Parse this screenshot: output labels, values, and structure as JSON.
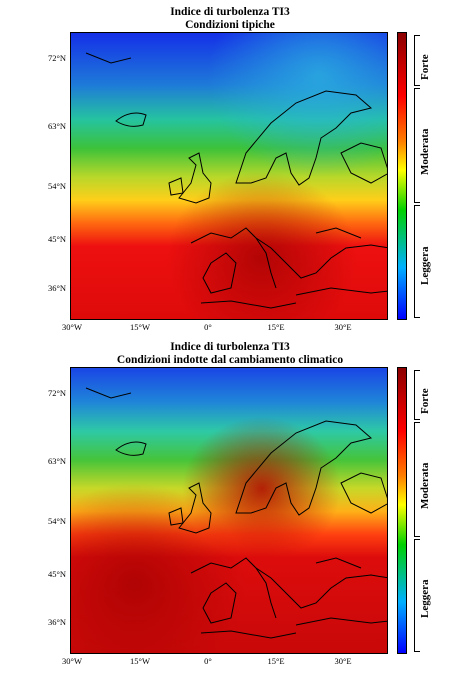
{
  "panels": [
    {
      "title_line1": "Indice di turbolenza TI3",
      "title_line2": "Condizioni tipiche",
      "lat_labels": [
        "72°N",
        "63°N",
        "54°N",
        "45°N",
        "36°N"
      ],
      "lon_labels": [
        "30°W",
        "15°W",
        "0°",
        "15°E",
        "30°E"
      ],
      "legend": [
        "Forte",
        "Moderata",
        "Leggera"
      ]
    },
    {
      "title_line1": "Indice di turbolenza TI3",
      "title_line2": "Condizioni indotte dal cambiamento climatico",
      "lat_labels": [
        "72°N",
        "63°N",
        "54°N",
        "45°N",
        "36°N"
      ],
      "lon_labels": [
        "30°W",
        "15°W",
        "0°",
        "15°E",
        "30°E"
      ],
      "legend": [
        "Forte",
        "Moderata",
        "Leggera"
      ]
    }
  ],
  "colors": {
    "colorbar_top": "#8b0000",
    "colorbar_high": "#ff0000",
    "colorbar_mid": "#ffff00",
    "colorbar_low_mid": "#00c000",
    "colorbar_bottom": "#0000ff"
  }
}
